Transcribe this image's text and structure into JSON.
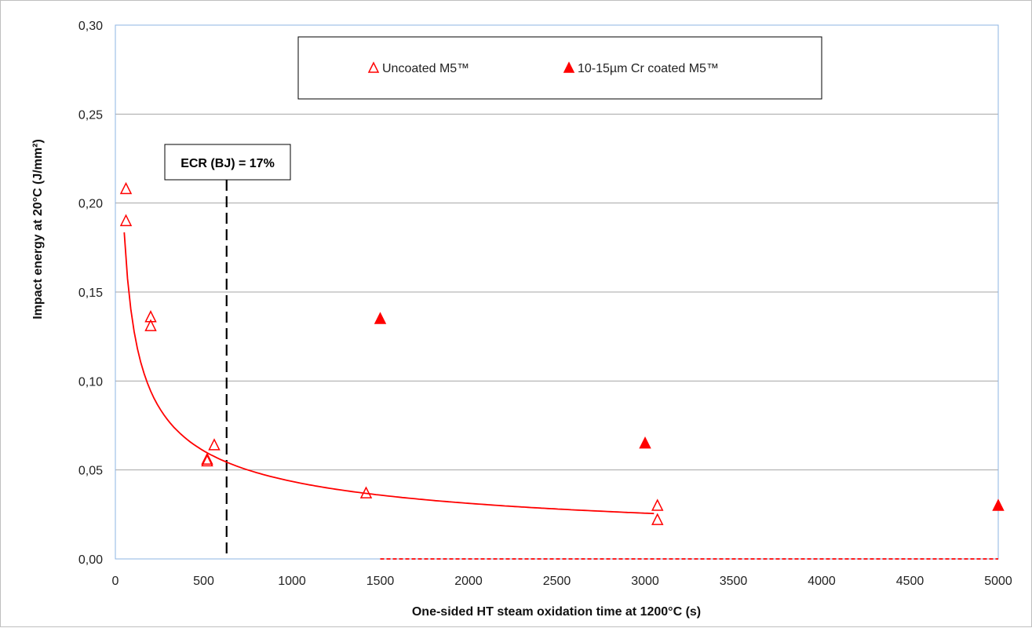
{
  "chart_data": {
    "type": "scatter",
    "xlabel": "One-sided HT steam oxidation time at 1200°C (s)",
    "ylabel": "Impact energy at 20°C (J/mm²)",
    "xlim": [
      0,
      5000
    ],
    "ylim": [
      0,
      0.3
    ],
    "x_ticks": [
      0,
      500,
      1000,
      1500,
      2000,
      2500,
      3000,
      3500,
      4000,
      4500,
      5000
    ],
    "y_ticks": [
      0.0,
      0.05,
      0.1,
      0.15,
      0.2,
      0.25,
      0.3
    ],
    "x_tick_labels": [
      "0",
      "500",
      "1000",
      "1500",
      "2000",
      "2500",
      "3000",
      "3500",
      "4000",
      "4500",
      "5000"
    ],
    "y_tick_labels": [
      "0,00",
      "0,05",
      "0,10",
      "0,15",
      "0,20",
      "0,25",
      "0,30"
    ],
    "grid": "horizontal",
    "legend_position": "top",
    "series": [
      {
        "name": "Uncoated M5™",
        "marker": "open-triangle",
        "color": "#ff0000",
        "x": [
          60,
          60,
          200,
          200,
          520,
          520,
          560,
          1420,
          3070,
          3070
        ],
        "y": [
          0.208,
          0.19,
          0.136,
          0.131,
          0.056,
          0.055,
          0.064,
          0.037,
          0.03,
          0.022
        ],
        "trendline": {
          "style": "solid",
          "x_start": 50,
          "x_end": 3050,
          "a": 1.2,
          "b": -0.48
        }
      },
      {
        "name": "10-15µm Cr coated M5™",
        "marker": "filled-triangle",
        "color": "#ff0000",
        "x": [
          1500,
          3000,
          5000
        ],
        "y": [
          0.135,
          0.065,
          0.03
        ],
        "trendline": {
          "style": "dashed",
          "x_start": 1500,
          "x_end": 5000,
          "a": 0.14,
          "b": -1.3
        }
      }
    ],
    "annotations": [
      {
        "text": "ECR (BJ) = 17%",
        "x": 630,
        "line": "vertical-dashed",
        "color": "#000000"
      }
    ]
  }
}
